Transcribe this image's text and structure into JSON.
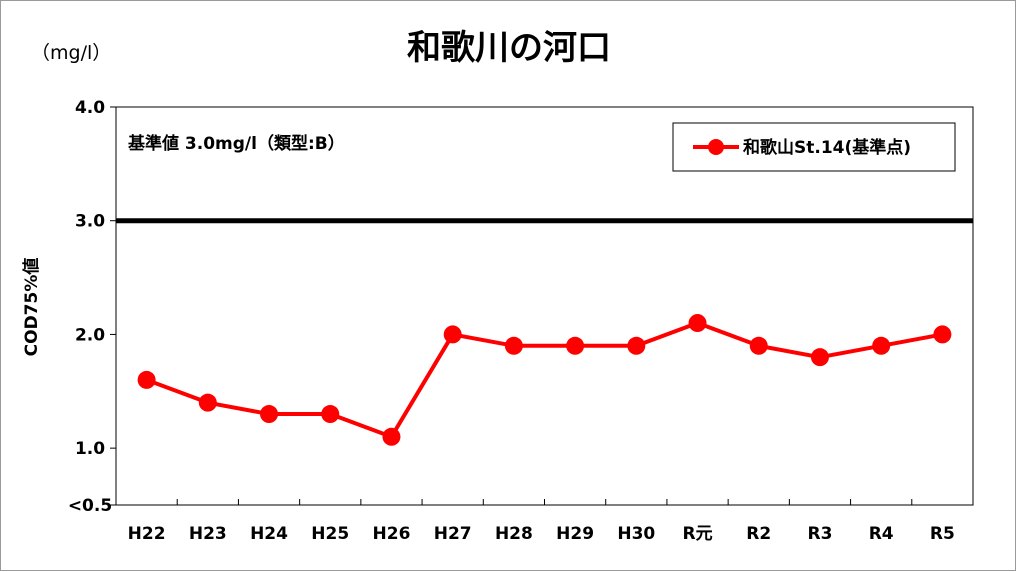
{
  "chart_data": {
    "type": "line",
    "title": "和歌川の河口",
    "unit": "（mg/l）",
    "ylabel": "COD75%値",
    "categories": [
      "H22",
      "H23",
      "H24",
      "H25",
      "H26",
      "H27",
      "H28",
      "H29",
      "H30",
      "R元",
      "R2",
      "R3",
      "R4",
      "R5"
    ],
    "series": [
      {
        "name": "和歌山St.14(基準点)",
        "color": "#ff0000",
        "values": [
          1.6,
          1.4,
          1.3,
          1.3,
          1.1,
          2.0,
          1.9,
          1.9,
          1.9,
          2.1,
          1.9,
          1.8,
          1.9,
          2.0
        ]
      }
    ],
    "ylim": [
      0.5,
      4.0
    ],
    "yticks": [
      "<0.5",
      "1.0",
      "2.0",
      "3.0",
      "4.0"
    ],
    "standard": {
      "value": 3.0,
      "label": "基準値  3.0mg/l（類型:B）",
      "color": "#000000"
    },
    "legend_position": "top-right",
    "grid": false
  }
}
